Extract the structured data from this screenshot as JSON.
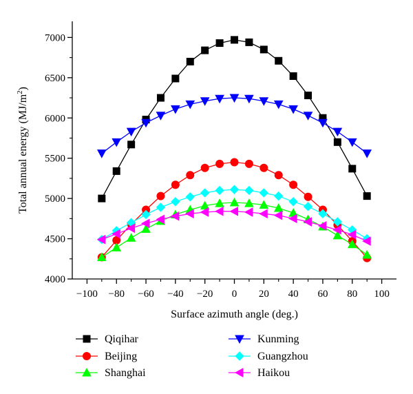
{
  "chart_data": {
    "type": "line",
    "xlabel": "Surface azimuth angle (deg.)",
    "ylabel": "Total annual energy (MJ/m",
    "ylabel_sup": "2",
    "ylabel_tail": ")",
    "xlim": [
      -110,
      110
    ],
    "ylim": [
      4000,
      7200
    ],
    "xticks": [
      -100,
      -80,
      -60,
      -40,
      -20,
      0,
      20,
      40,
      60,
      80,
      100
    ],
    "yticks": [
      4000,
      4500,
      5000,
      5500,
      6000,
      6500,
      7000
    ],
    "xtick_labels": [
      "−100",
      "−80",
      "−60",
      "−40",
      "−20",
      "0",
      "20",
      "40",
      "60",
      "80",
      "100"
    ],
    "ytick_labels": [
      "4000",
      "4500",
      "5000",
      "5500",
      "6000",
      "6500",
      "7000"
    ],
    "grid": false,
    "legend_position": "bottom",
    "x": [
      -90,
      -80,
      -70,
      -60,
      -50,
      -40,
      -30,
      -20,
      -10,
      0,
      10,
      20,
      30,
      40,
      50,
      60,
      70,
      80,
      90
    ],
    "series": [
      {
        "name": "Qiqihar",
        "marker": "square",
        "color": "#000000",
        "values": [
          5000,
          5340,
          5670,
          5980,
          6250,
          6490,
          6700,
          6840,
          6930,
          6970,
          6940,
          6850,
          6710,
          6520,
          6280,
          6000,
          5700,
          5370,
          5030
        ]
      },
      {
        "name": "Kunming",
        "marker": "triangle-down",
        "color": "#0000ff",
        "values": [
          5560,
          5700,
          5830,
          5940,
          6030,
          6110,
          6170,
          6210,
          6240,
          6250,
          6240,
          6210,
          6170,
          6110,
          6030,
          5940,
          5830,
          5700,
          5560
        ]
      },
      {
        "name": "Beijing",
        "marker": "circle",
        "color": "#ff0000",
        "values": [
          4270,
          4480,
          4680,
          4860,
          5030,
          5170,
          5290,
          5380,
          5430,
          5450,
          5430,
          5380,
          5290,
          5170,
          5020,
          4860,
          4670,
          4470,
          4260
        ]
      },
      {
        "name": "Guangzhou",
        "marker": "diamond",
        "color": "#00ffff",
        "values": [
          4490,
          4600,
          4700,
          4800,
          4890,
          4960,
          5020,
          5070,
          5100,
          5110,
          5100,
          5070,
          5030,
          4960,
          4900,
          4810,
          4710,
          4610,
          4500
        ]
      },
      {
        "name": "Shanghai",
        "marker": "triangle-up",
        "color": "#00ff00",
        "values": [
          4270,
          4390,
          4510,
          4620,
          4720,
          4800,
          4860,
          4910,
          4940,
          4950,
          4940,
          4920,
          4880,
          4820,
          4740,
          4650,
          4540,
          4430,
          4300
        ]
      },
      {
        "name": "Haikou",
        "marker": "triangle-left",
        "color": "#ff00ff",
        "values": [
          4490,
          4560,
          4630,
          4690,
          4740,
          4780,
          4810,
          4830,
          4840,
          4840,
          4830,
          4810,
          4790,
          4750,
          4710,
          4660,
          4610,
          4550,
          4470
        ]
      }
    ]
  }
}
